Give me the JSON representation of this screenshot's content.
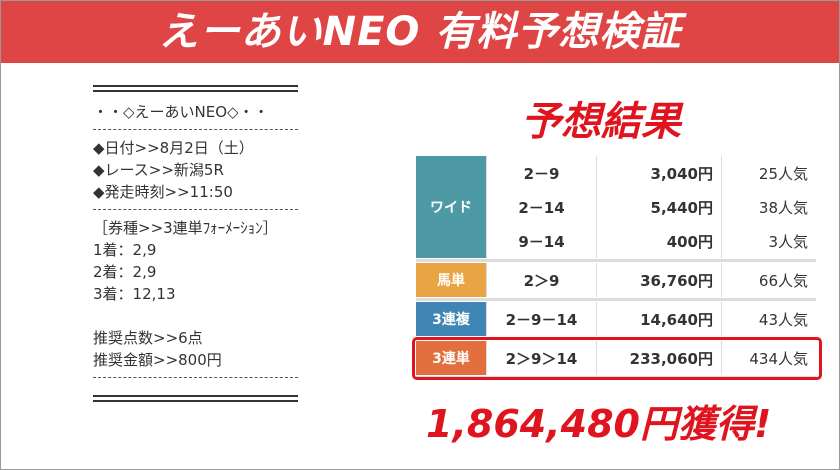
{
  "header": {
    "title": "えーあいNEO 有料予想検証"
  },
  "memo": {
    "groups": [
      [
        "・・◇えーあいNEO◇・・"
      ],
      [
        "◆日付>>8月2日（土）",
        "◆レース>>新潟5R",
        "◆発走時刻>>11:50"
      ],
      [
        "［券種>>3連単ﾌｫｰﾒｰｼｮﾝ］",
        "1着：2,9",
        "2着：2,9",
        "3着：12,13",
        "",
        "推奨点数>>6点",
        "推奨金額>>800円"
      ]
    ]
  },
  "result": {
    "title": "予想結果",
    "groups": [
      {
        "type": "ワイド",
        "color": "#4d9aa6",
        "rows": [
          [
            "2－9",
            "3,040円",
            "25人気"
          ],
          [
            "2－14",
            "5,440円",
            "38人気"
          ],
          [
            "9－14",
            "400円",
            "3人気"
          ]
        ]
      },
      {
        "type": "馬単",
        "color": "#e9a443",
        "rows": [
          [
            "2＞9",
            "36,760円",
            "66人気"
          ]
        ]
      },
      {
        "type": "3連複",
        "color": "#3f86b5",
        "rows": [
          [
            "2－9－14",
            "14,640円",
            "43人気"
          ]
        ]
      },
      {
        "type": "3連単",
        "color": "#e36f3f",
        "rows": [
          [
            "2＞9＞14",
            "233,060円",
            "434人気"
          ]
        ]
      }
    ],
    "total": "1,864,480円獲得!"
  }
}
